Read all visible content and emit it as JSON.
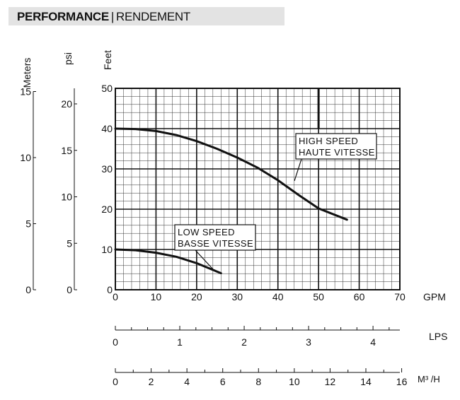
{
  "header": {
    "title": "PERFORMANCE",
    "separator": "|",
    "subtitle": "RENDEMENT"
  },
  "chart_data": {
    "type": "line",
    "y_axis_titles": {
      "meters": "Meters",
      "psi": "psi",
      "feet": "Feet"
    },
    "x_axis_titles": {
      "gpm": "GPM",
      "lps": "LPS",
      "m3h": "M³ /H"
    },
    "feet_ticks": [
      "0",
      "10",
      "20",
      "30",
      "40",
      "50"
    ],
    "meters_ticks": [
      "0",
      "5",
      "10",
      "15"
    ],
    "psi_ticks": [
      "0",
      "5",
      "10",
      "15",
      "20"
    ],
    "gpm_ticks": [
      "0",
      "10",
      "20",
      "30",
      "40",
      "50",
      "60",
      "70"
    ],
    "lps_ticks": [
      "0",
      "1",
      "2",
      "3",
      "4"
    ],
    "m3h_ticks": [
      "0",
      "2",
      "4",
      "6",
      "8",
      "10",
      "12",
      "14",
      "16"
    ],
    "xlim": [
      0,
      70
    ],
    "ylim": [
      0,
      50
    ],
    "grid": true,
    "series": [
      {
        "name": "HIGH SPEED\nHAUTE VITESSE",
        "label_lines": [
          "HIGH SPEED",
          "HAUTE VITESSE"
        ],
        "x": [
          0,
          5,
          10,
          15,
          20,
          25,
          30,
          35,
          40,
          45,
          50,
          57
        ],
        "y": [
          40,
          39.9,
          39.4,
          38.4,
          36.9,
          35,
          32.8,
          30.3,
          27.2,
          23.6,
          20.2,
          17.4
        ]
      },
      {
        "name": "LOW SPEED\nBASSE VITESSE",
        "label_lines": [
          "LOW SPEED",
          "BASSE VITESSE"
        ],
        "x": [
          0,
          5,
          10,
          15,
          20,
          26
        ],
        "y": [
          10,
          9.8,
          9.2,
          8.2,
          6.6,
          4.1
        ]
      }
    ]
  }
}
